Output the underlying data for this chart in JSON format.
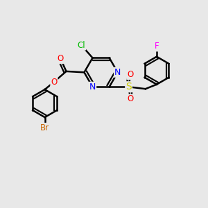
{
  "bg_color": "#e8e8e8",
  "bond_color": "#000000",
  "bond_width": 1.8,
  "atom_colors": {
    "Cl": "#00bb00",
    "N": "#0000ff",
    "O": "#ff0000",
    "S": "#cccc00",
    "Br": "#cc6600",
    "F": "#ff00ff",
    "C": "#000000"
  },
  "font_size": 8.5,
  "fig_size": [
    3.0,
    3.0
  ],
  "dpi": 100
}
